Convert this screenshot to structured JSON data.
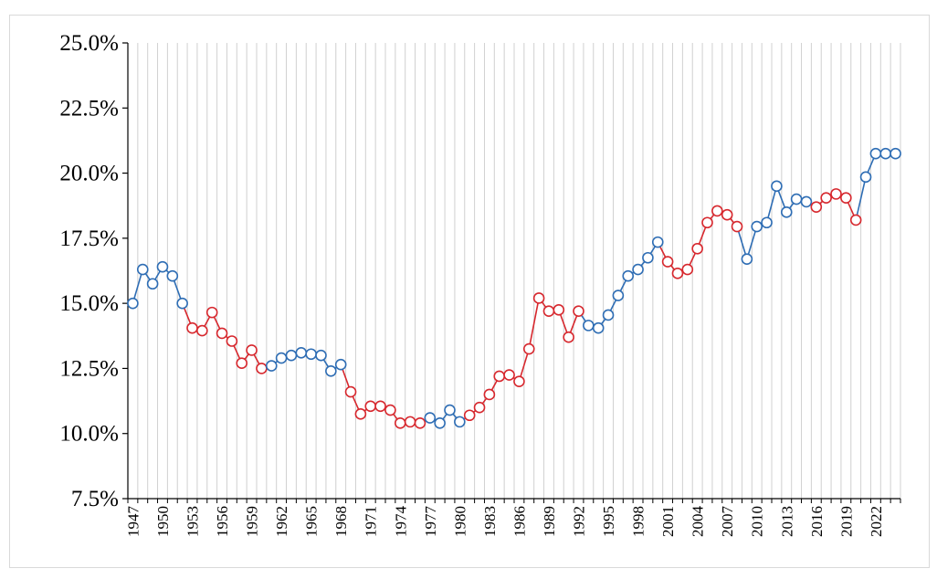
{
  "chart_data": {
    "type": "line",
    "title": "",
    "xlabel": "",
    "ylabel": "",
    "ylim": [
      7.5,
      25.0
    ],
    "y_ticks": [
      "7.5%",
      "10.0%",
      "12.5%",
      "15.0%",
      "17.5%",
      "20.0%",
      "22.5%",
      "25.0%"
    ],
    "y_tick_values": [
      7.5,
      10.0,
      12.5,
      15.0,
      17.5,
      20.0,
      22.5,
      25.0
    ],
    "x_tick_labels": [
      "1947",
      "1950",
      "1953",
      "1956",
      "1959",
      "1962",
      "1965",
      "1968",
      "1971",
      "1974",
      "1977",
      "1980",
      "1983",
      "1986",
      "1989",
      "1992",
      "1995",
      "1998",
      "2001",
      "2004",
      "2007",
      "2010",
      "2013",
      "2016",
      "2019",
      "2022"
    ],
    "grid": "vertical",
    "colors": {
      "blue": "#2e6db4",
      "red": "#d7282e"
    },
    "years": [
      1947,
      1948,
      1949,
      1950,
      1951,
      1952,
      1953,
      1954,
      1955,
      1956,
      1957,
      1958,
      1959,
      1960,
      1961,
      1962,
      1963,
      1964,
      1965,
      1966,
      1967,
      1968,
      1969,
      1970,
      1971,
      1972,
      1973,
      1974,
      1975,
      1976,
      1977,
      1978,
      1979,
      1980,
      1981,
      1982,
      1983,
      1984,
      1985,
      1986,
      1987,
      1988,
      1989,
      1990,
      1991,
      1992,
      1993,
      1994,
      1995,
      1996,
      1997,
      1998,
      1999,
      2000,
      2001,
      2002,
      2003,
      2004,
      2005,
      2006,
      2007,
      2008,
      2009,
      2010,
      2011,
      2012,
      2013,
      2014,
      2015,
      2016,
      2017,
      2018,
      2019,
      2020,
      2021,
      2022,
      2023,
      2024
    ],
    "values": [
      15.0,
      16.3,
      15.75,
      16.4,
      16.05,
      15.0,
      14.05,
      13.95,
      14.65,
      13.85,
      13.55,
      12.7,
      13.2,
      12.5,
      12.6,
      12.9,
      13.0,
      13.1,
      13.05,
      13.0,
      12.4,
      12.65,
      11.6,
      10.75,
      11.05,
      11.05,
      10.9,
      10.4,
      10.45,
      10.4,
      10.6,
      10.4,
      10.9,
      10.45,
      10.7,
      11.0,
      11.5,
      12.2,
      12.25,
      12.0,
      13.25,
      15.2,
      14.7,
      14.75,
      13.7,
      14.7,
      14.15,
      14.05,
      14.55,
      15.3,
      16.05,
      16.3,
      16.75,
      17.35,
      16.6,
      16.15,
      16.3,
      17.1,
      18.1,
      18.55,
      18.4,
      17.95,
      16.7,
      17.95,
      18.1,
      19.5,
      18.5,
      19.0,
      18.9,
      18.7,
      19.05,
      19.2,
      19.05,
      18.2,
      19.85,
      20.75,
      20.75,
      20.75
    ],
    "segment_colors": [
      "blue",
      "blue",
      "blue",
      "blue",
      "blue",
      "blue",
      "red",
      "red",
      "red",
      "red",
      "red",
      "red",
      "red",
      "red",
      "blue",
      "blue",
      "blue",
      "blue",
      "blue",
      "blue",
      "blue",
      "blue",
      "red",
      "red",
      "red",
      "red",
      "red",
      "red",
      "red",
      "red",
      "blue",
      "blue",
      "blue",
      "blue",
      "red",
      "red",
      "red",
      "red",
      "red",
      "red",
      "red",
      "red",
      "red",
      "red",
      "red",
      "red",
      "blue",
      "blue",
      "blue",
      "blue",
      "blue",
      "blue",
      "blue",
      "blue",
      "red",
      "red",
      "red",
      "red",
      "red",
      "red",
      "red",
      "red",
      "blue",
      "blue",
      "blue",
      "blue",
      "blue",
      "blue",
      "blue",
      "red",
      "red",
      "red",
      "red",
      "red",
      "blue",
      "blue",
      "blue",
      "blue"
    ]
  }
}
